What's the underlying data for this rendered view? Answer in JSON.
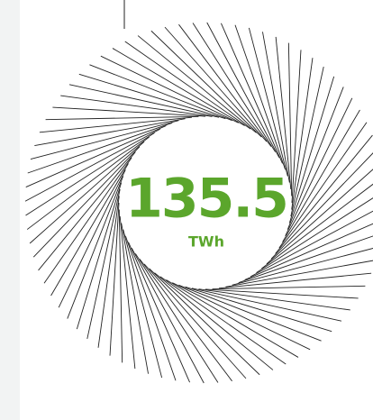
{
  "reading": {
    "value": 135.5,
    "unit": "TWh"
  }
}
